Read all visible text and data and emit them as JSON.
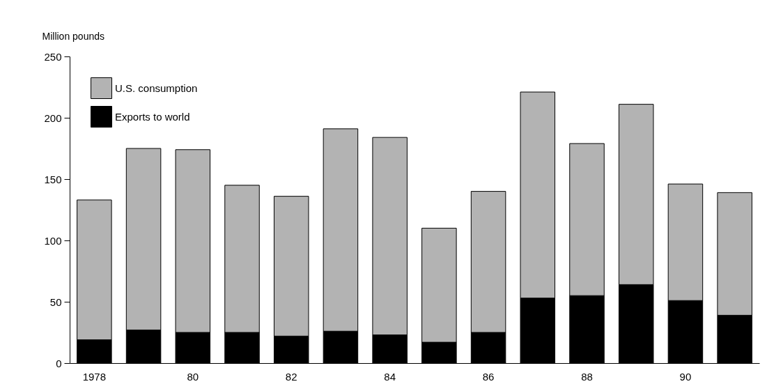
{
  "chart_data": {
    "type": "bar",
    "stacked": true,
    "ylabel": "Million pounds",
    "categories": [
      "1978",
      null,
      "80",
      null,
      "82",
      null,
      "84",
      null,
      "86",
      null,
      "88",
      null,
      "90",
      null
    ],
    "series": [
      {
        "name": "Exports to world",
        "color": "#000000",
        "values": [
          19,
          27,
          25,
          25,
          22,
          26,
          23,
          17,
          25,
          53,
          55,
          64,
          51,
          39
        ]
      },
      {
        "name": "U.S. consumption",
        "color": "#b3b3b3",
        "values": [
          114,
          148,
          149,
          120,
          114,
          165,
          161,
          93,
          115,
          168,
          124,
          147,
          95,
          100
        ]
      }
    ],
    "ylim": [
      0,
      250
    ],
    "yticks": [
      0,
      50,
      100,
      150,
      200,
      250
    ],
    "grid": false,
    "legend": "top left"
  }
}
